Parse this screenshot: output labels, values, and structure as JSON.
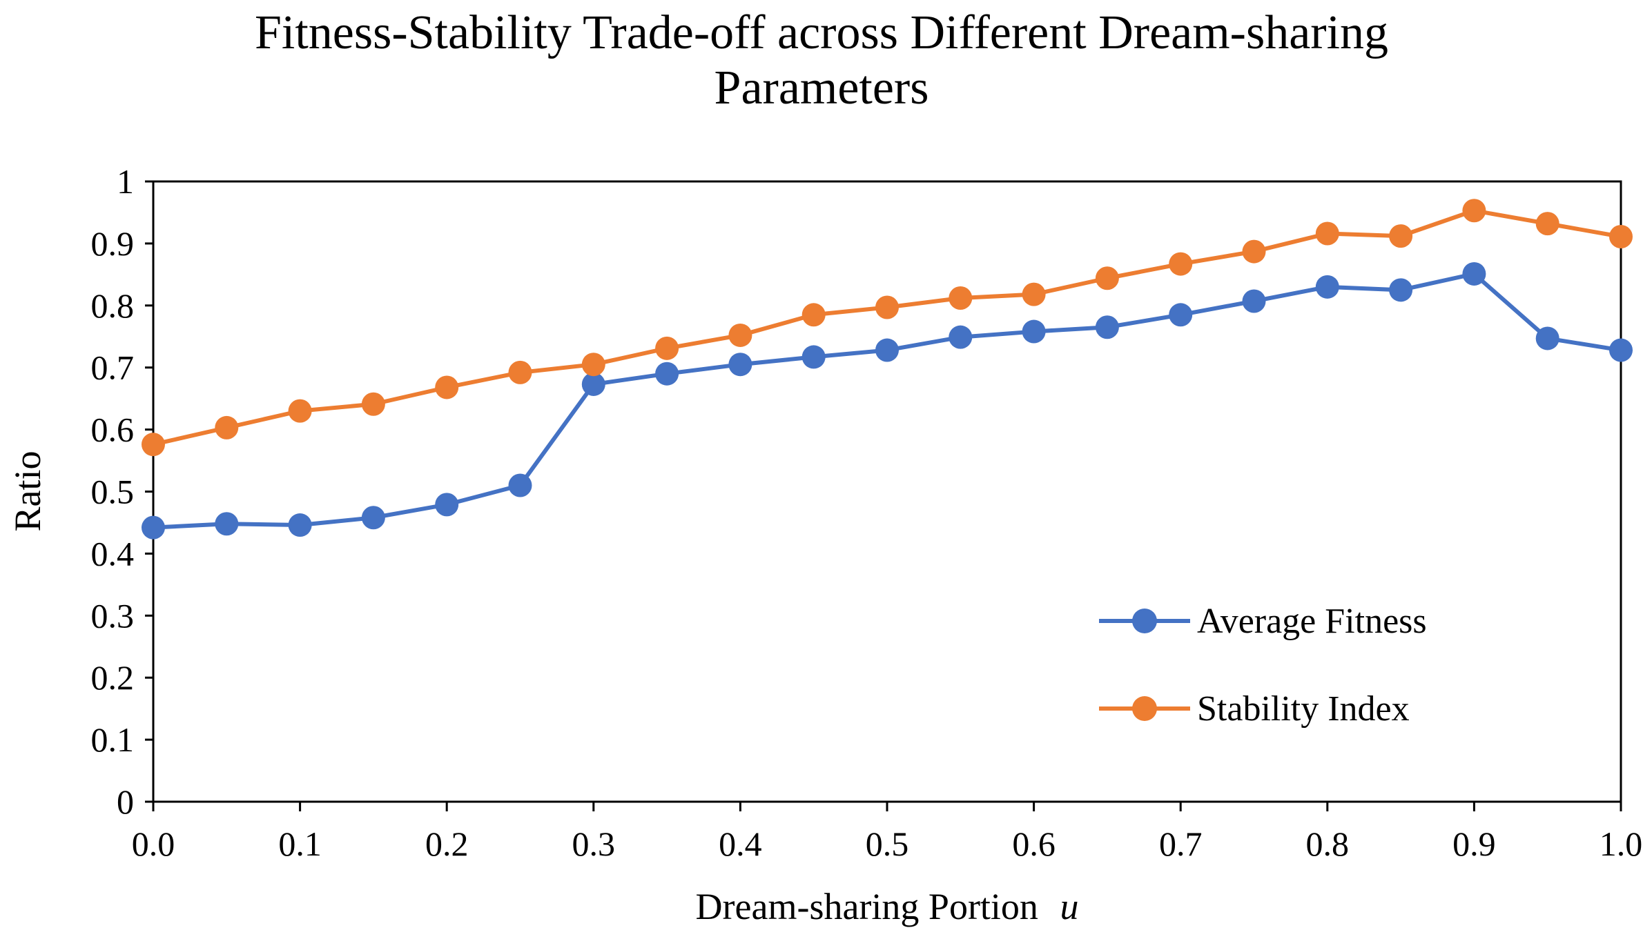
{
  "chart_data": {
    "type": "line",
    "title_lines": [
      "Fitness-Stability Trade-off across Different Dream-sharing",
      "Parameters"
    ],
    "xlabel": "Dream-sharing Portion",
    "xlabel_var": "u",
    "ylabel": "Ratio",
    "xlim": [
      0,
      1
    ],
    "ylim": [
      0,
      1
    ],
    "x_ticks": [
      "0.0",
      "0.1",
      "0.2",
      "0.3",
      "0.4",
      "0.5",
      "0.6",
      "0.7",
      "0.8",
      "0.9",
      "1.0"
    ],
    "y_ticks": [
      "0",
      "0.1",
      "0.2",
      "0.3",
      "0.4",
      "0.5",
      "0.6",
      "0.7",
      "0.8",
      "0.9",
      "1"
    ],
    "grid": false,
    "legend_position": "lower-right",
    "x": [
      0.0,
      0.05,
      0.1,
      0.15,
      0.2,
      0.25,
      0.3,
      0.35,
      0.4,
      0.45,
      0.5,
      0.55,
      0.6,
      0.65,
      0.7,
      0.75,
      0.8,
      0.85,
      0.9,
      0.95,
      1.0
    ],
    "series": [
      {
        "name": "Average Fitness",
        "color": "#4472C4",
        "values": [
          0.442,
          0.448,
          0.446,
          0.458,
          0.479,
          0.51,
          0.673,
          0.69,
          0.705,
          0.717,
          0.728,
          0.749,
          0.758,
          0.765,
          0.785,
          0.807,
          0.83,
          0.825,
          0.851,
          0.747,
          0.728
        ]
      },
      {
        "name": "Stability Index",
        "color": "#ED7D31",
        "values": [
          0.576,
          0.603,
          0.63,
          0.641,
          0.668,
          0.692,
          0.705,
          0.731,
          0.752,
          0.785,
          0.797,
          0.812,
          0.818,
          0.844,
          0.867,
          0.887,
          0.916,
          0.912,
          0.953,
          0.932,
          0.911
        ]
      }
    ]
  }
}
